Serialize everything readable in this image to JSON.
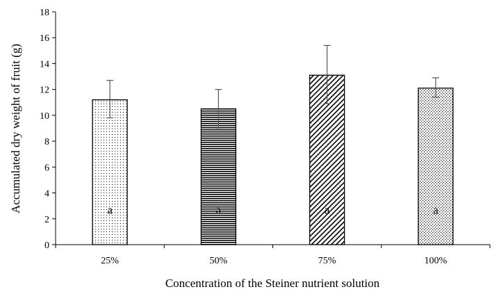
{
  "chart_data": {
    "type": "bar",
    "title": "",
    "xlabel": "Concentration of the Steiner nutrient solution",
    "ylabel": "Accumulated dry weight of fruit (g)",
    "categories": [
      "25%",
      "50%",
      "75%",
      "100%"
    ],
    "values": [
      11.2,
      10.5,
      13.1,
      12.1
    ],
    "error_plus": [
      1.5,
      1.5,
      2.3,
      0.8
    ],
    "error_minus": [
      1.4,
      1.5,
      2.2,
      0.7
    ],
    "letters": [
      "a",
      "a",
      "a",
      "a"
    ],
    "patterns": [
      "sparse-dots",
      "horizontal-lines",
      "diagonal-lines",
      "diamond-dots"
    ],
    "ylim": [
      0,
      18
    ],
    "yticks": [
      "0",
      "2",
      "4",
      "6",
      "8",
      "10",
      "12",
      "14",
      "16",
      "18"
    ],
    "grid": false,
    "legend": "none"
  }
}
